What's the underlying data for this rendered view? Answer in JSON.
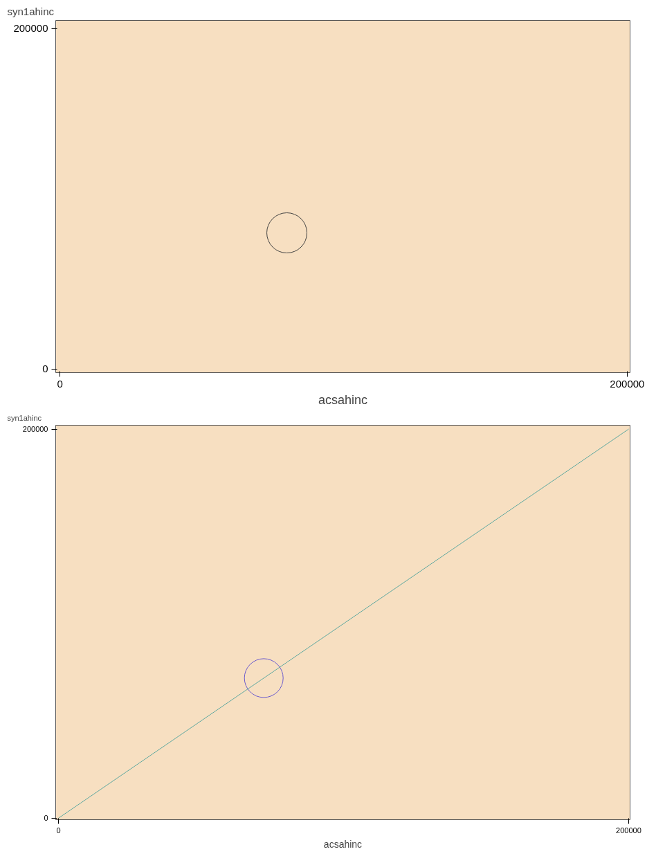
{
  "chart_data": [
    {
      "type": "scatter",
      "xlabel": "acsahinc",
      "ylabel": "syn1ahinc",
      "xlim": [
        -1500,
        201000
      ],
      "ylim": [
        -2100,
        204800
      ],
      "xticks": [
        0,
        200000
      ],
      "yticks": [
        0,
        200000
      ],
      "grid": false,
      "series": [
        {
          "color": "#404040",
          "x": [
            80000
          ],
          "values": [
            80000
          ],
          "marker": "circle"
        }
      ]
    },
    {
      "type": "scatter",
      "xlabel": "acsahinc",
      "ylabel": "syn1ahinc",
      "xlim": [
        -1000,
        200500
      ],
      "ylim": [
        -800,
        202000
      ],
      "xticks": [
        0,
        200000
      ],
      "yticks": [
        0,
        200000
      ],
      "grid": false,
      "series": [
        {
          "color": "#6a5acd",
          "x": [
            72000
          ],
          "values": [
            72000
          ],
          "marker": "circle"
        },
        {
          "type": "line",
          "color": "#5fa8a0",
          "x": [
            0,
            200000
          ],
          "values": [
            0,
            200000
          ],
          "line_style": "solid"
        }
      ]
    }
  ]
}
